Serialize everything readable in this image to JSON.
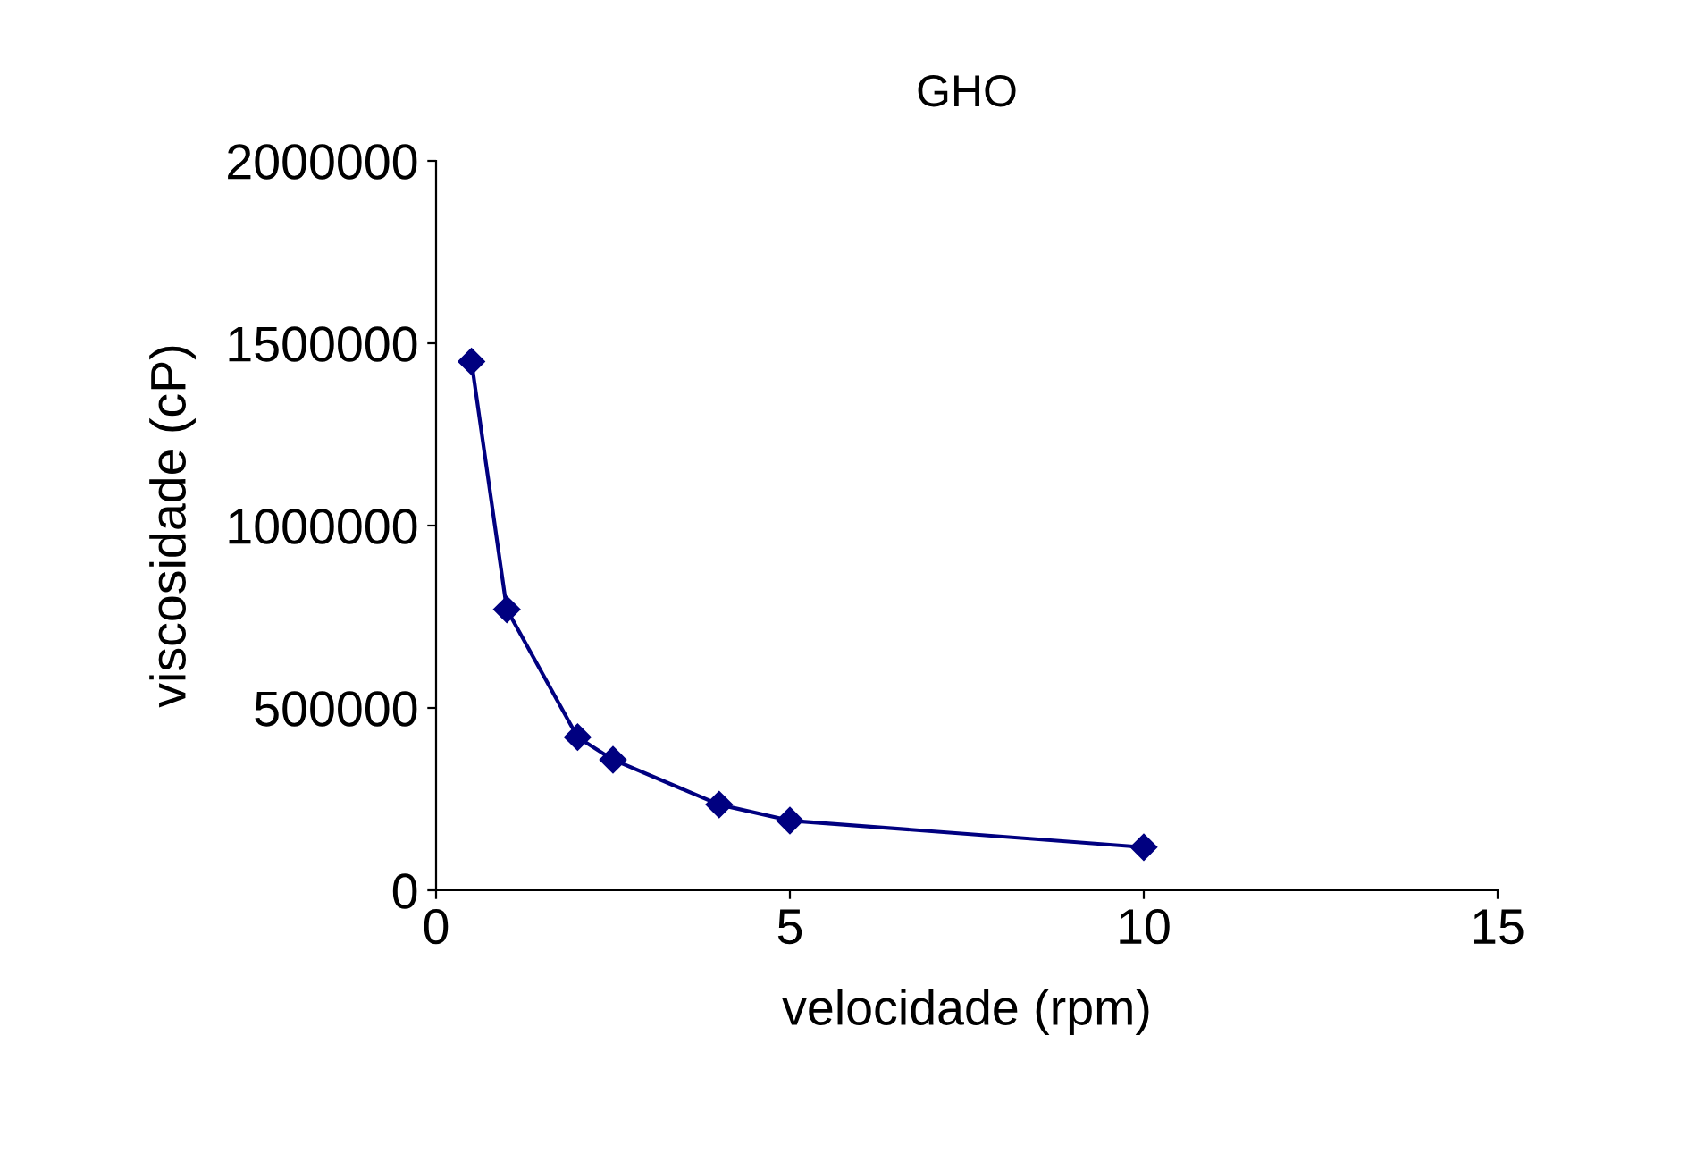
{
  "chart_data": {
    "type": "line",
    "title": "GHO",
    "xlabel": "velocidade (rpm)",
    "ylabel": "viscosidade (cP)",
    "x": [
      0.5,
      1,
      2,
      2.5,
      4,
      5,
      10
    ],
    "series": [
      {
        "color": "#000080",
        "values": [
          1450000,
          770000,
          420000,
          358000,
          235000,
          191000,
          118000
        ]
      }
    ],
    "xlim": [
      0,
      15
    ],
    "xticks": [
      0,
      5,
      10,
      15
    ],
    "ylim": [
      0,
      2000000
    ],
    "yticks": [
      0,
      500000,
      1000000,
      1500000,
      2000000
    ],
    "marker": "diamond",
    "grid": false,
    "legend": false
  }
}
